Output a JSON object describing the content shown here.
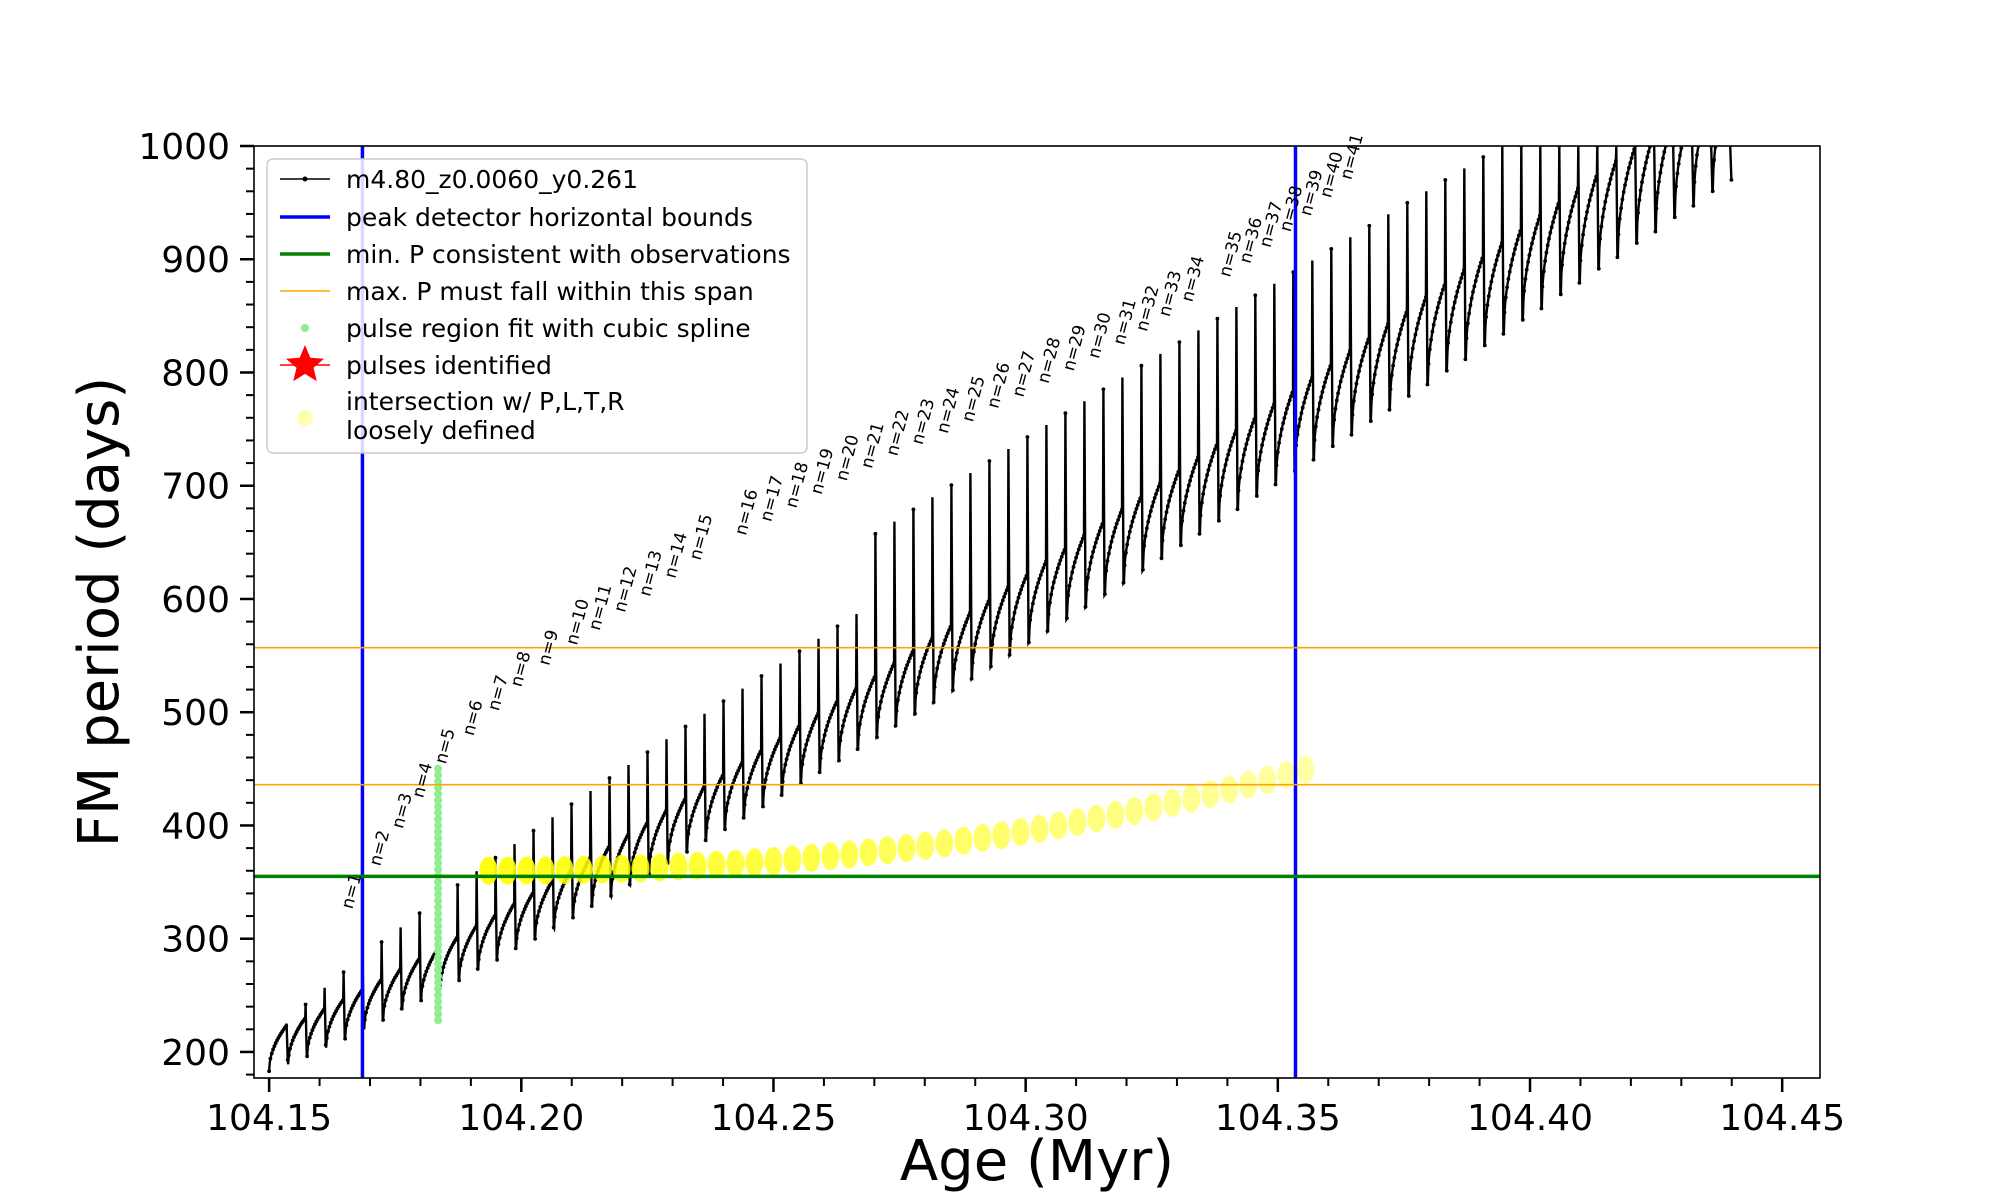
{
  "chart_data": {
    "type": "line",
    "xlabel": "Age (Myr)",
    "ylabel": "FM period (days)",
    "xlim": [
      104.147,
      104.4575
    ],
    "ylim": [
      177,
      1000
    ],
    "x_ticks": [
      104.15,
      104.2,
      104.25,
      104.3,
      104.35,
      104.4,
      104.45
    ],
    "x_tick_labels": [
      "104.15",
      "104.20",
      "104.25",
      "104.30",
      "104.35",
      "104.40",
      "104.45"
    ],
    "y_ticks": [
      200,
      300,
      400,
      500,
      600,
      700,
      800,
      900,
      1000
    ],
    "y_tick_labels": [
      "200",
      "300",
      "400",
      "500",
      "600",
      "700",
      "800",
      "900",
      "1000"
    ],
    "grid": false,
    "legend_placement": "top-left",
    "series": [
      {
        "name": "m4.80_z0.0060_y0.261",
        "color": "#000000",
        "style": "line-with-small-dots",
        "description_points": {
          "age_start": 104.15,
          "age_end": 104.44,
          "n_cycles": 77,
          "baseline_period_start": 183,
          "baseline_period_end": 960,
          "peak_period_start": 225,
          "peak_period_end_capped": 1000
        }
      },
      {
        "name": "peak detector horizontal bounds",
        "color": "#0000ff",
        "type": "vline",
        "x": [
          104.1685,
          104.3535
        ]
      },
      {
        "name": "min. P consistent with observations",
        "color": "#008000",
        "type": "hline",
        "y": 355
      },
      {
        "name": "max. P must fall within this span",
        "color": "#ffa500",
        "type": "hline",
        "y": [
          436,
          557
        ]
      },
      {
        "name": "pulse region fit with cubic spline",
        "color": "#90ee90",
        "type": "scatter",
        "x": 104.1835,
        "y_range": [
          228,
          450
        ]
      },
      {
        "name": "pulses identified",
        "color": "#ff0000",
        "marker": "star",
        "points": []
      },
      {
        "name": "intersection w/ P,L,T,R\nloosely defined",
        "color": "#ffff00",
        "type": "scatter"
      }
    ],
    "pulse_labels": [
      {
        "label": "n=1",
        "age": 104.1665,
        "period": 322
      },
      {
        "label": "n=2",
        "age": 104.172,
        "period": 360
      },
      {
        "label": "n=3",
        "age": 104.1765,
        "period": 393
      },
      {
        "label": "n=4",
        "age": 104.1805,
        "period": 420
      },
      {
        "label": "n=5",
        "age": 104.185,
        "period": 450
      },
      {
        "label": "n=6",
        "age": 104.1905,
        "period": 475
      },
      {
        "label": "n=7",
        "age": 104.1955,
        "period": 497
      },
      {
        "label": "n=8",
        "age": 104.2,
        "period": 518
      },
      {
        "label": "n=9",
        "age": 104.2055,
        "period": 537
      },
      {
        "label": "n=10",
        "age": 104.211,
        "period": 555
      },
      {
        "label": "n=11",
        "age": 104.2155,
        "period": 568
      },
      {
        "label": "n=12",
        "age": 104.2205,
        "period": 584
      },
      {
        "label": "n=13",
        "age": 104.2255,
        "period": 598
      },
      {
        "label": "n=14",
        "age": 104.2305,
        "period": 614
      },
      {
        "label": "n=15",
        "age": 104.2355,
        "period": 630
      },
      {
        "label": "n=16",
        "age": 104.2445,
        "period": 652
      },
      {
        "label": "n=17",
        "age": 104.2495,
        "period": 664
      },
      {
        "label": "n=18",
        "age": 104.2545,
        "period": 676
      },
      {
        "label": "n=19",
        "age": 104.2595,
        "period": 688
      },
      {
        "label": "n=20",
        "age": 104.2645,
        "period": 700
      },
      {
        "label": "n=21",
        "age": 104.2695,
        "period": 711
      },
      {
        "label": "n=22",
        "age": 104.2745,
        "period": 722
      },
      {
        "label": "n=23",
        "age": 104.2795,
        "period": 732
      },
      {
        "label": "n=24",
        "age": 104.2845,
        "period": 742
      },
      {
        "label": "n=25",
        "age": 104.2895,
        "period": 752
      },
      {
        "label": "n=26",
        "age": 104.2945,
        "period": 764
      },
      {
        "label": "n=27",
        "age": 104.2995,
        "period": 774
      },
      {
        "label": "n=28",
        "age": 104.3045,
        "period": 786
      },
      {
        "label": "n=29",
        "age": 104.3095,
        "period": 797
      },
      {
        "label": "n=30",
        "age": 104.3145,
        "period": 808
      },
      {
        "label": "n=31",
        "age": 104.3195,
        "period": 820
      },
      {
        "label": "n=32",
        "age": 104.324,
        "period": 832
      },
      {
        "label": "n=33",
        "age": 104.3285,
        "period": 845
      },
      {
        "label": "n=34",
        "age": 104.333,
        "period": 858
      },
      {
        "label": "n=35",
        "age": 104.3405,
        "period": 880
      },
      {
        "label": "n=36",
        "age": 104.3445,
        "period": 892
      },
      {
        "label": "n=37",
        "age": 104.3485,
        "period": 906
      },
      {
        "label": "n=38",
        "age": 104.3525,
        "period": 920
      },
      {
        "label": "n=39",
        "age": 104.3565,
        "period": 934
      },
      {
        "label": "n=40",
        "age": 104.3605,
        "period": 950
      },
      {
        "label": "n=41",
        "age": 104.3645,
        "period": 966
      }
    ]
  }
}
